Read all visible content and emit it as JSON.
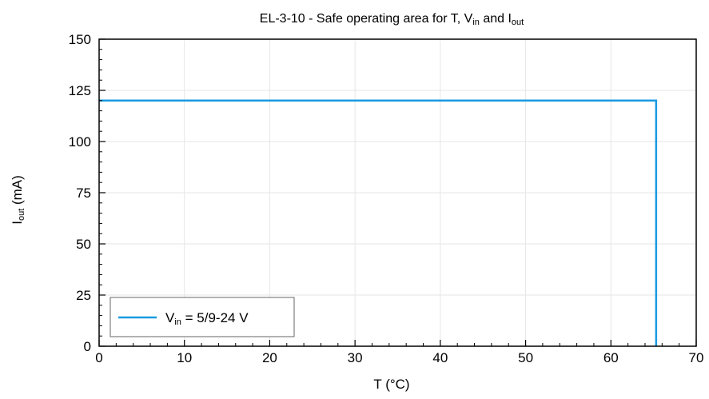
{
  "chart_data": {
    "type": "line",
    "title": {
      "main": "EL-3-10 - Safe operating area for T, V",
      "sub1": "in",
      "mid": " and I",
      "sub2": "out"
    },
    "xlabel": "T (°C)",
    "ylabel": {
      "main": "I",
      "sub": "out",
      "rest": " (mA)"
    },
    "xlim": [
      0,
      70
    ],
    "ylim": [
      0,
      150
    ],
    "x_ticks": [
      0,
      10,
      20,
      30,
      40,
      50,
      60,
      70
    ],
    "y_ticks": [
      0,
      25,
      50,
      75,
      100,
      125,
      150
    ],
    "grid": true,
    "legend_position": "bottom-left",
    "series": [
      {
        "name": {
          "main": "V",
          "sub": "in",
          "rest": " = 5/9-24 V"
        },
        "color": "#1a9be0",
        "x": [
          0,
          65.3,
          65.3
        ],
        "y": [
          120,
          120,
          0
        ]
      }
    ]
  }
}
